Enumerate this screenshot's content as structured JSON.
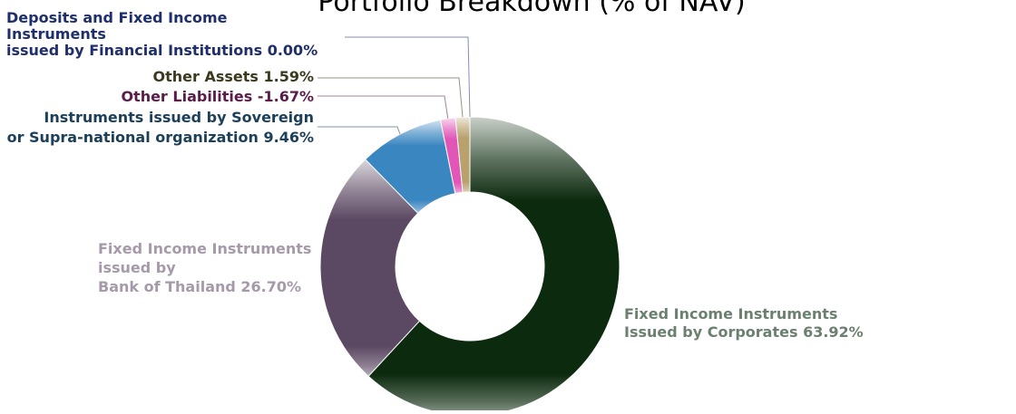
{
  "chart_data": {
    "type": "pie",
    "title": "Portfolio Breakdown (% of NAV)",
    "slices": [
      {
        "name_lines": [
          "Fixed Income Instruments",
          "Issued by Corporates 63.92%"
        ],
        "value": 63.92,
        "color": "#0c2a0e",
        "label_color": "#6b8070"
      },
      {
        "name_lines": [
          "Fixed Income Instruments",
          "issued by",
          "Bank of Thailand 26.70%"
        ],
        "value": 26.7,
        "color": "#5b4862",
        "label_color": "#a69aaa"
      },
      {
        "name_lines": [
          "Instruments issued by Sovereign",
          "or Supra-national organization 9.46%"
        ],
        "value": 9.46,
        "color": "#3a86c0",
        "label_color": "#1c3f5a"
      },
      {
        "name_lines": [
          "Other Liabilities -1.67%"
        ],
        "value": -1.67,
        "color": "#e256b8",
        "label_color": "#5a1c49"
      },
      {
        "name_lines": [
          "Other Assets 1.59%"
        ],
        "value": 1.59,
        "color": "#b8a16d",
        "label_color": "#3b3a1e"
      },
      {
        "name_lines": [
          "Deposits and Fixed Income",
          "Instruments",
          "issued by Financial Institutions 0.00%"
        ],
        "value": 0.0,
        "color": "#2d3a7a",
        "label_color": "#1f2f6b"
      }
    ]
  }
}
